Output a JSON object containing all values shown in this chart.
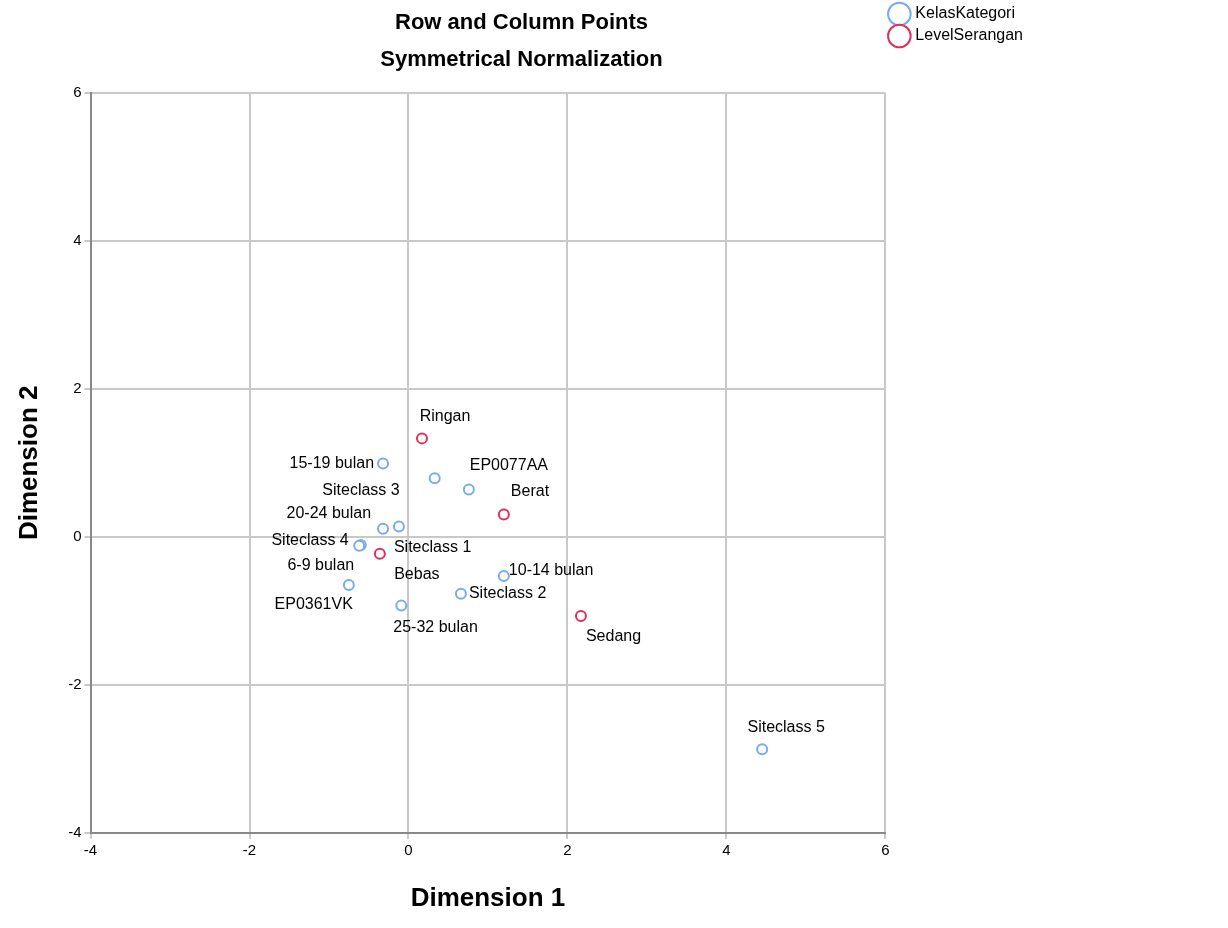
{
  "chart_data": {
    "type": "scatter",
    "title": "Row and Column Points",
    "subtitle": "Symmetrical Normalization",
    "xlabel": "Dimension 1",
    "ylabel": "Dimension 2",
    "series": [
      {
        "name": "KelasKategori",
        "color": "#78aaf0",
        "x": [
          -0.32,
          0.33,
          0.76,
          -0.32,
          -0.12,
          -0.6,
          -0.62,
          -0.75,
          -0.09,
          0.66,
          1.2,
          4.45
        ],
        "values": [
          0.99,
          0.79,
          0.64,
          0.11,
          0.14,
          -0.11,
          -0.12,
          -0.65,
          -0.93,
          -0.77,
          -0.53,
          -2.87
        ]
      },
      {
        "name": "LevelSerangan",
        "color": "#e0305a",
        "x": [
          0.17,
          1.2,
          -0.36,
          2.17
        ],
        "values": [
          1.33,
          0.3,
          -0.23,
          -1.07
        ]
      }
    ],
    "annotations": [
      {
        "text": "15-19 bulan",
        "x": -0.32,
        "y": 0.99
      },
      {
        "text": "Siteclass 3",
        "x": 0.33,
        "y": 0.79
      },
      {
        "text": "EP0077AA",
        "x": 0.76,
        "y": 0.64
      },
      {
        "text": "20-24 bulan",
        "x": -0.32,
        "y": 0.11
      },
      {
        "text": "Siteclass 1",
        "x": -0.12,
        "y": 0.14
      },
      {
        "text": "Siteclass 4",
        "x": -0.6,
        "y": -0.11
      },
      {
        "text": "6-9 bulan",
        "x": -0.62,
        "y": -0.12
      },
      {
        "text": "EP0361VK",
        "x": -0.75,
        "y": -0.65
      },
      {
        "text": "25-32 bulan",
        "x": -0.09,
        "y": -0.93
      },
      {
        "text": "Siteclass 2",
        "x": 0.66,
        "y": -0.77
      },
      {
        "text": "10-14 bulan",
        "x": 1.2,
        "y": -0.53
      },
      {
        "text": "Siteclass 5",
        "x": 4.45,
        "y": -2.87
      },
      {
        "text": "Ringan",
        "x": 0.17,
        "y": 1.33
      },
      {
        "text": "Berat",
        "x": 1.2,
        "y": 0.3
      },
      {
        "text": "Bebas",
        "x": -0.36,
        "y": -0.23
      },
      {
        "text": "Sedang",
        "x": 2.17,
        "y": -1.07
      }
    ],
    "xlim": [
      -4,
      6
    ],
    "xticks": [
      -4,
      -2,
      0,
      2,
      4,
      6
    ],
    "ylim": [
      -4,
      6
    ],
    "yticks": [
      -4,
      -2,
      0,
      2,
      4,
      6
    ],
    "grid": true,
    "legend": "top right",
    "marker": "circle"
  }
}
